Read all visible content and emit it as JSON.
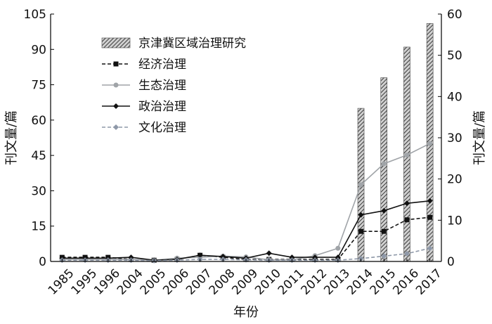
{
  "chart_data": {
    "type": "bar+line",
    "categories": [
      "1985",
      "1995",
      "1996",
      "2004",
      "2005",
      "2006",
      "2007",
      "2008",
      "2009",
      "2010",
      "2011",
      "2012",
      "2013",
      "2014",
      "2015",
      "2016",
      "2017"
    ],
    "xlabel": "年份",
    "ylabel_left": "刊文量/篇",
    "ylabel_right": "刊文量/篇",
    "ylim_left": [
      0,
      105
    ],
    "yticks_left": [
      0,
      15,
      30,
      45,
      60,
      75,
      90,
      105
    ],
    "ylim_right": [
      0,
      60
    ],
    "yticks_right": [
      0,
      10,
      20,
      30,
      40,
      50,
      60
    ],
    "legend_position": "upper-left",
    "bar_series": {
      "name": "京津冀区域治理研究",
      "axis": "left",
      "values": [
        0,
        0,
        0,
        0,
        0,
        0,
        0,
        0,
        0,
        0,
        0,
        0,
        0,
        65,
        78,
        91,
        101
      ]
    },
    "series": [
      {
        "name": "经济治理",
        "axis": "right",
        "style": "dashed",
        "marker": "square",
        "color": "#111111",
        "values": [
          1,
          1,
          1,
          0.5,
          0.3,
          0.5,
          1.5,
          1,
          0.5,
          0.5,
          0.5,
          0.5,
          0.5,
          7.3,
          7.3,
          10.1,
          10.7
        ]
      },
      {
        "name": "生态治理",
        "axis": "right",
        "style": "solid",
        "marker": "circle",
        "color": "#a0a4a8",
        "values": [
          0.5,
          0.5,
          0.5,
          0.5,
          0.3,
          0.8,
          1,
          1.3,
          1.1,
          0.4,
          0.4,
          1.4,
          3.2,
          18.6,
          23.7,
          25.8,
          28.6
        ]
      },
      {
        "name": "政治治理",
        "axis": "right",
        "style": "solid",
        "marker": "diamond",
        "color": "#111111",
        "values": [
          0.8,
          0.8,
          0.8,
          1,
          0.3,
          0.5,
          1.5,
          1.2,
          0.8,
          2,
          1,
          1,
          1,
          11.3,
          12.3,
          14.1,
          14.7
        ]
      },
      {
        "name": "文化治理",
        "axis": "right",
        "style": "dashed",
        "marker": "diamond",
        "color": "#8e98a8",
        "values": [
          0.3,
          0.3,
          0.3,
          0.3,
          0.2,
          0.3,
          0.5,
          0.5,
          0.4,
          0.3,
          0.3,
          0.3,
          0.3,
          0.7,
          1.3,
          1.9,
          3.2
        ]
      }
    ]
  }
}
